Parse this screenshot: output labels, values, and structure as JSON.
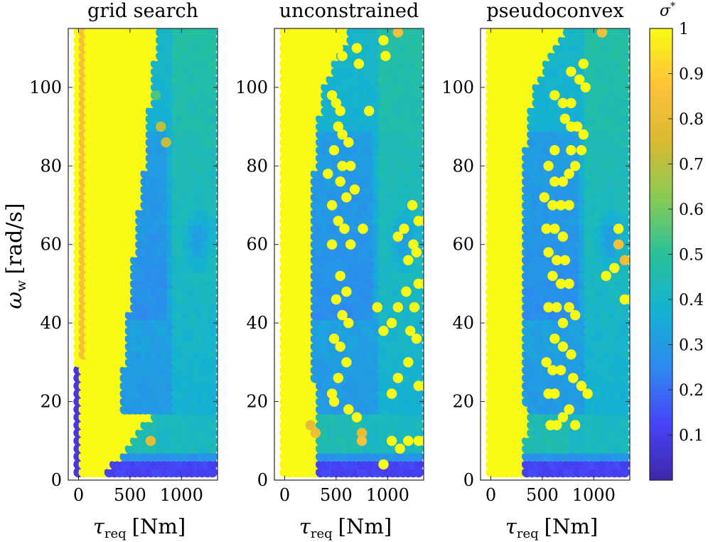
{
  "figure": {
    "y_label": "ω",
    "y_label_sub": "w",
    "y_label_unit": "[rad/s]"
  },
  "colorbar": {
    "label": "σ",
    "label_sup": "*",
    "range": [
      0.0,
      1.0
    ],
    "ticks": [
      0.1,
      0.2,
      0.3,
      0.4,
      0.5,
      0.6,
      0.7,
      0.8,
      0.9,
      1.0
    ],
    "tick_labels": [
      "0.1",
      "0.2",
      "0.3",
      "0.4",
      "0.5",
      "0.6",
      "0.7",
      "0.8",
      "0.9",
      "1"
    ],
    "colors": [
      "#3e26a8",
      "#4743f8",
      "#2d8aef",
      "#15b1d4",
      "#27c19a",
      "#88cb53",
      "#d8ba32",
      "#fec13a",
      "#f9fb15"
    ]
  },
  "chart_data": [
    {
      "type": "heatmap",
      "title": "grid search",
      "xlabel": "τ",
      "xlabel_sub": "req",
      "xlabel_unit": "[Nm]",
      "ylabel": "ω_w [rad/s]",
      "xlim": [
        -100,
        1350
      ],
      "ylim": [
        0,
        115
      ],
      "xticks": [
        0,
        500,
        1000
      ],
      "xtick_labels": [
        "0",
        "500",
        "1000"
      ],
      "yticks": [
        0,
        20,
        40,
        60,
        80,
        100
      ],
      "ytick_labels": [
        "0",
        "20",
        "40",
        "60",
        "80",
        "100"
      ],
      "grid_step": {
        "tau": 50,
        "omega": 2
      },
      "tau_range": [
        0,
        1300
      ],
      "omega_range": [
        2,
        114
      ],
      "saturated_boundary": {
        "omega": [
          2,
          16,
          17,
          30,
          60,
          80,
          100,
          114
        ],
        "tau": [
          280,
          700,
          400,
          450,
          560,
          650,
          720,
          780
        ]
      },
      "low_region": {
        "tau_max": 30,
        "omega_max": 28,
        "value": 0.08
      },
      "orange_boundary_column": {
        "tau": 50,
        "value": 0.85
      },
      "hot_points": [
        [
          750,
          98,
          0.55
        ],
        [
          800,
          90,
          0.7
        ],
        [
          850,
          86,
          0.72
        ],
        [
          700,
          10,
          0.8
        ]
      ],
      "yellow_points": []
    },
    {
      "type": "heatmap",
      "title": "unconstrained",
      "xlabel": "τ",
      "xlabel_sub": "req",
      "xlabel_unit": "[Nm]",
      "xlim": [
        -100,
        1350
      ],
      "ylim": [
        0,
        115
      ],
      "xticks": [
        0,
        500,
        1000
      ],
      "xtick_labels": [
        "0",
        "500",
        "1000"
      ],
      "yticks": [
        0,
        20,
        40,
        60,
        80,
        100
      ],
      "ytick_labels": [
        "0",
        "20",
        "40",
        "60",
        "80",
        "100"
      ],
      "grid_step": {
        "tau": 50,
        "omega": 2
      },
      "tau_range": [
        0,
        1300
      ],
      "omega_range": [
        2,
        114
      ],
      "saturated_boundary": {
        "omega": [
          2,
          16,
          30,
          60,
          80,
          100,
          114
        ],
        "tau": [
          320,
          330,
          280,
          260,
          300,
          380,
          640
        ]
      },
      "hot_points": [
        [
          1100,
          114,
          0.85
        ],
        [
          750,
          12,
          0.8
        ],
        [
          750,
          10,
          0.85
        ],
        [
          250,
          14,
          0.8
        ],
        [
          300,
          12,
          0.82
        ]
      ],
      "yellow_points": [
        [
          520,
          110
        ],
        [
          560,
          108
        ],
        [
          700,
          110
        ],
        [
          720,
          106
        ],
        [
          960,
          112
        ],
        [
          980,
          108
        ],
        [
          400,
          104
        ],
        [
          460,
          98
        ],
        [
          500,
          96
        ],
        [
          540,
          94
        ],
        [
          820,
          94
        ],
        [
          520,
          90
        ],
        [
          560,
          88
        ],
        [
          620,
          86
        ],
        [
          480,
          84
        ],
        [
          560,
          80
        ],
        [
          640,
          80
        ],
        [
          420,
          78
        ],
        [
          540,
          76
        ],
        [
          600,
          72
        ],
        [
          680,
          74
        ],
        [
          460,
          70
        ],
        [
          520,
          66
        ],
        [
          580,
          64
        ],
        [
          640,
          60
        ],
        [
          460,
          60
        ],
        [
          760,
          64
        ],
        [
          1240,
          70
        ],
        [
          1300,
          66
        ],
        [
          1250,
          60
        ],
        [
          1160,
          64
        ],
        [
          1200,
          56
        ],
        [
          1280,
          58
        ],
        [
          1100,
          62
        ],
        [
          540,
          52
        ],
        [
          600,
          48
        ],
        [
          500,
          46
        ],
        [
          560,
          42
        ],
        [
          620,
          40
        ],
        [
          1100,
          44
        ],
        [
          1180,
          48
        ],
        [
          1260,
          44
        ],
        [
          1300,
          50
        ],
        [
          1040,
          40
        ],
        [
          960,
          38
        ],
        [
          900,
          44
        ],
        [
          1220,
          38
        ],
        [
          1280,
          36
        ],
        [
          480,
          36
        ],
        [
          540,
          34
        ],
        [
          600,
          30
        ],
        [
          1200,
          30
        ],
        [
          1300,
          24
        ],
        [
          1100,
          26
        ],
        [
          1040,
          22
        ],
        [
          520,
          26
        ],
        [
          460,
          22
        ],
        [
          480,
          20
        ],
        [
          620,
          18
        ],
        [
          700,
          16
        ],
        [
          1040,
          10
        ],
        [
          1120,
          8
        ],
        [
          1200,
          10
        ],
        [
          1300,
          10
        ],
        [
          960,
          4
        ]
      ]
    },
    {
      "type": "heatmap",
      "title": "pseudoconvex",
      "xlabel": "τ",
      "xlabel_sub": "req",
      "xlabel_unit": "[Nm]",
      "xlim": [
        -100,
        1350
      ],
      "ylim": [
        0,
        115
      ],
      "xticks": [
        0,
        500,
        1000
      ],
      "xtick_labels": [
        "0",
        "500",
        "1000"
      ],
      "yticks": [
        0,
        20,
        40,
        60,
        80,
        100
      ],
      "ytick_labels": [
        "0",
        "20",
        "40",
        "60",
        "80",
        "100"
      ],
      "grid_step": {
        "tau": 50,
        "omega": 2
      },
      "tau_range": [
        0,
        1300
      ],
      "omega_range": [
        2,
        114
      ],
      "saturated_boundary": {
        "omega": [
          2,
          16,
          30,
          60,
          80,
          100,
          114
        ],
        "tau": [
          330,
          360,
          320,
          300,
          330,
          420,
          700
        ]
      },
      "hot_points": [
        [
          1080,
          114,
          0.85
        ],
        [
          1240,
          60,
          0.85
        ],
        [
          1300,
          56,
          0.82
        ]
      ],
      "yellow_points": [
        [
          780,
          104
        ],
        [
          860,
          102
        ],
        [
          900,
          106
        ],
        [
          920,
          100
        ],
        [
          620,
          98
        ],
        [
          700,
          96
        ],
        [
          780,
          96
        ],
        [
          720,
          92
        ],
        [
          780,
          90
        ],
        [
          840,
          90
        ],
        [
          900,
          88
        ],
        [
          880,
          84
        ],
        [
          780,
          84
        ],
        [
          620,
          84
        ],
        [
          560,
          80
        ],
        [
          620,
          76
        ],
        [
          700,
          76
        ],
        [
          760,
          78
        ],
        [
          820,
          80
        ],
        [
          520,
          72
        ],
        [
          600,
          70
        ],
        [
          680,
          70
        ],
        [
          760,
          70
        ],
        [
          540,
          64
        ],
        [
          620,
          64
        ],
        [
          700,
          62
        ],
        [
          560,
          58
        ],
        [
          640,
          56
        ],
        [
          720,
          56
        ],
        [
          600,
          52
        ],
        [
          680,
          50
        ],
        [
          760,
          50
        ],
        [
          560,
          44
        ],
        [
          640,
          44
        ],
        [
          700,
          40
        ],
        [
          760,
          44
        ],
        [
          820,
          42
        ],
        [
          620,
          36
        ],
        [
          700,
          34
        ],
        [
          780,
          32
        ],
        [
          540,
          30
        ],
        [
          600,
          28
        ],
        [
          680,
          28
        ],
        [
          800,
          26
        ],
        [
          560,
          22
        ],
        [
          620,
          22
        ],
        [
          880,
          24
        ],
        [
          940,
          22
        ],
        [
          760,
          18
        ],
        [
          700,
          16
        ],
        [
          640,
          14
        ],
        [
          820,
          14
        ],
        [
          580,
          14
        ],
        [
          1240,
          64
        ],
        [
          1200,
          54
        ],
        [
          1300,
          46
        ],
        [
          1120,
          52
        ]
      ]
    }
  ]
}
